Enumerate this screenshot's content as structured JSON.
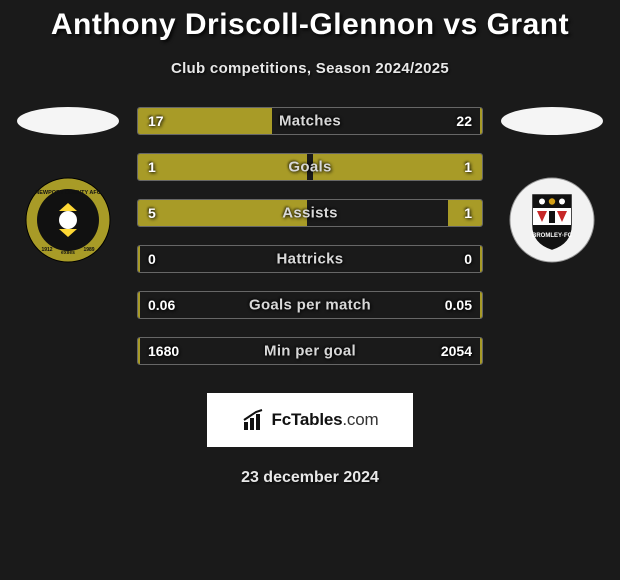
{
  "title": "Anthony Driscoll-Glennon vs Grant",
  "subtitle": "Club competitions, Season 2024/2025",
  "date": "23 december 2024",
  "footer_brand_strong": "FcTables",
  "footer_brand_light": ".com",
  "colors": {
    "bar_left": "#a89b27",
    "bar_right": "#a89b27",
    "club_left_ring": "#a89b27",
    "club_left_inner": "#111111",
    "club_right_bg": "#f2f2f2",
    "background": "#1a1a1a"
  },
  "stats": [
    {
      "label": "Matches",
      "left_val": "17",
      "right_val": "22",
      "left_pct": 39,
      "right_pct": 0.5
    },
    {
      "label": "Goals",
      "left_val": "1",
      "right_val": "1",
      "left_pct": 49,
      "right_pct": 49
    },
    {
      "label": "Assists",
      "left_val": "5",
      "right_val": "1",
      "left_pct": 49,
      "right_pct": 10
    },
    {
      "label": "Hattricks",
      "left_val": "0",
      "right_val": "0",
      "left_pct": 0.5,
      "right_pct": 0.5
    },
    {
      "label": "Goals per match",
      "left_val": "0.06",
      "right_val": "0.05",
      "left_pct": 0.5,
      "right_pct": 0.5
    },
    {
      "label": "Min per goal",
      "left_val": "1680",
      "right_val": "2054",
      "left_pct": 0.5,
      "right_pct": 0.5
    }
  ]
}
